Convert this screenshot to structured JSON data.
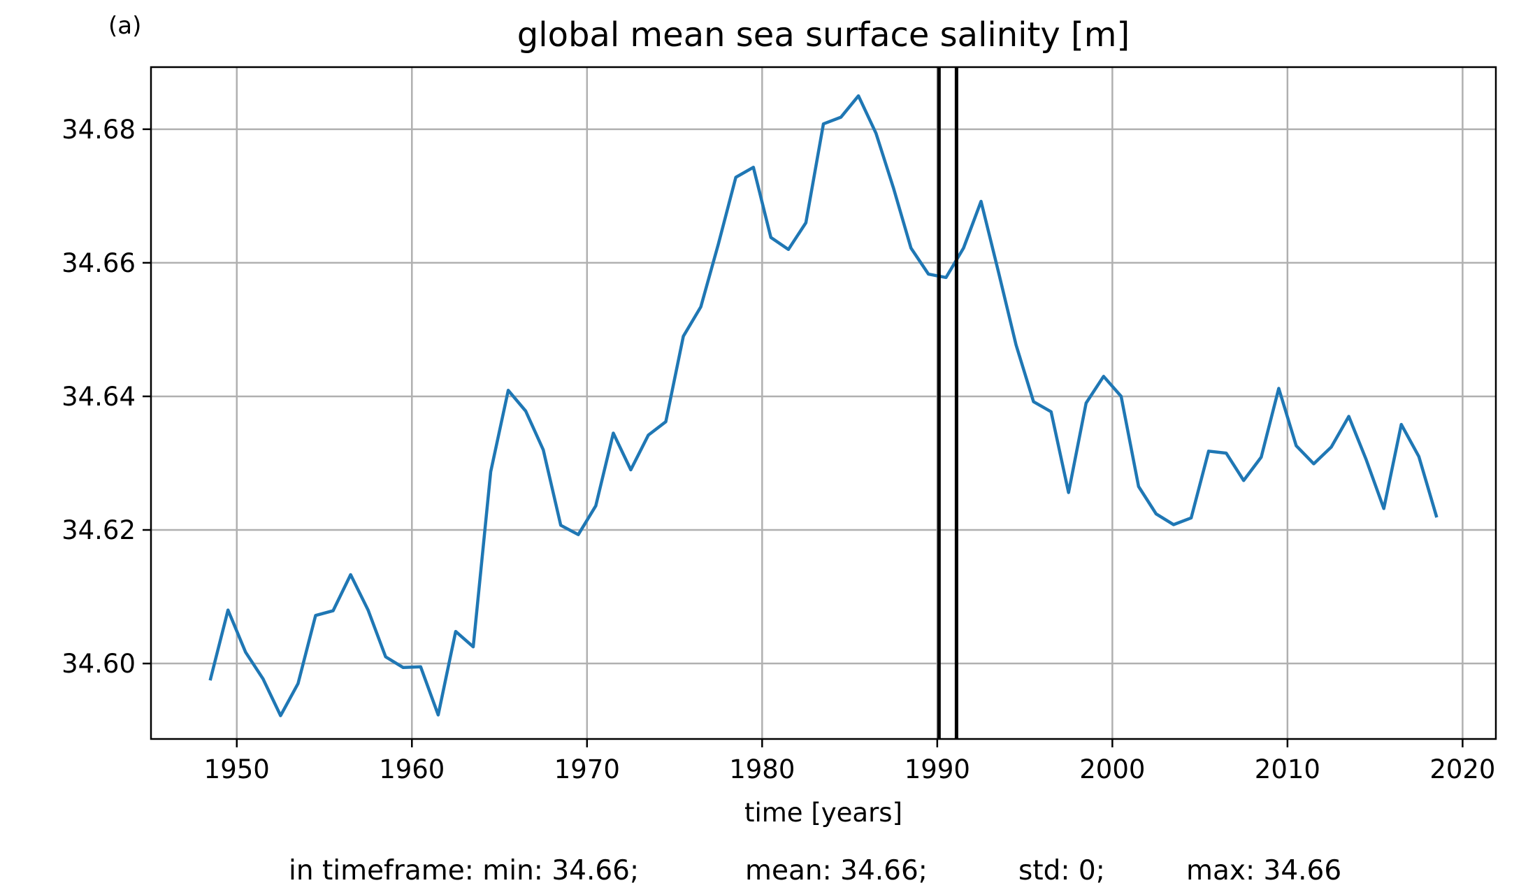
{
  "panel_label": "(a)",
  "stats": {
    "min": "in timeframe: min: 34.66;",
    "mean": "mean: 34.66;",
    "std": "std: 0;",
    "max": "max: 34.66"
  },
  "colors": {
    "series": "#1f77b4",
    "grid": "#b0b0b0",
    "markers": "#000000"
  },
  "chart_data": {
    "type": "line",
    "title": "global mean sea surface salinity [m]",
    "xlabel": "time [years]",
    "ylabel": "",
    "xlim": [
      1945.1,
      2021.9
    ],
    "ylim": [
      34.5887,
      34.6893
    ],
    "xticks": [
      "1950",
      "1960",
      "1970",
      "1980",
      "1990",
      "2000",
      "2010",
      "2020"
    ],
    "yticks": [
      "34.60",
      "34.62",
      "34.64",
      "34.66",
      "34.68"
    ],
    "grid": true,
    "vertical_lines": [
      1990.1,
      1991.1
    ],
    "series": [
      {
        "x": [
          1948.5,
          1949.5,
          1950.5,
          1951.5,
          1952.5,
          1953.5,
          1954.5,
          1955.5,
          1956.5,
          1957.5,
          1958.5,
          1959.5,
          1960.5,
          1961.5,
          1962.5,
          1963.5,
          1964.5,
          1965.5,
          1966.5,
          1967.5,
          1968.5,
          1969.5,
          1970.5,
          1971.5,
          1972.5,
          1973.5,
          1974.5,
          1975.5,
          1976.5,
          1977.5,
          1978.5,
          1979.5,
          1980.5,
          1981.5,
          1982.5,
          1983.5,
          1984.5,
          1985.5,
          1986.5,
          1987.5,
          1988.5,
          1989.5,
          1990.5,
          1991.5,
          1992.5,
          1993.5,
          1994.5,
          1995.5,
          1996.5,
          1997.5,
          1998.5,
          1999.5,
          2000.5,
          2001.5,
          2002.5,
          2003.5,
          2004.5,
          2005.5,
          2006.5,
          2007.5,
          2008.5,
          2009.5,
          2010.5,
          2011.5,
          2012.5,
          2013.5,
          2014.5,
          2015.5,
          2016.5,
          2017.5,
          2018.5
        ],
        "y": [
          34.5977,
          34.608,
          34.6017,
          34.5977,
          34.5922,
          34.597,
          34.6072,
          34.6079,
          34.6133,
          34.608,
          34.601,
          34.5994,
          34.5995,
          34.5923,
          34.6048,
          34.6025,
          34.6287,
          34.6409,
          34.6378,
          34.632,
          34.6207,
          34.6193,
          34.6236,
          34.6345,
          34.629,
          34.6342,
          34.6362,
          34.649,
          34.6534,
          34.6628,
          34.6728,
          34.6743,
          34.6638,
          34.662,
          34.666,
          34.6808,
          34.6818,
          34.685,
          34.6794,
          34.6712,
          34.6622,
          34.6583,
          34.6578,
          34.6622,
          34.6692,
          34.6586,
          34.6477,
          34.6392,
          34.6377,
          34.6256,
          34.639,
          34.643,
          34.64,
          34.6265,
          34.6224,
          34.6208,
          34.6218,
          34.6318,
          34.6315,
          34.6274,
          34.6309,
          34.6412,
          34.6326,
          34.6299,
          34.6324,
          34.637,
          34.6305,
          34.6232,
          34.6358,
          34.631,
          34.6221
        ]
      }
    ]
  }
}
